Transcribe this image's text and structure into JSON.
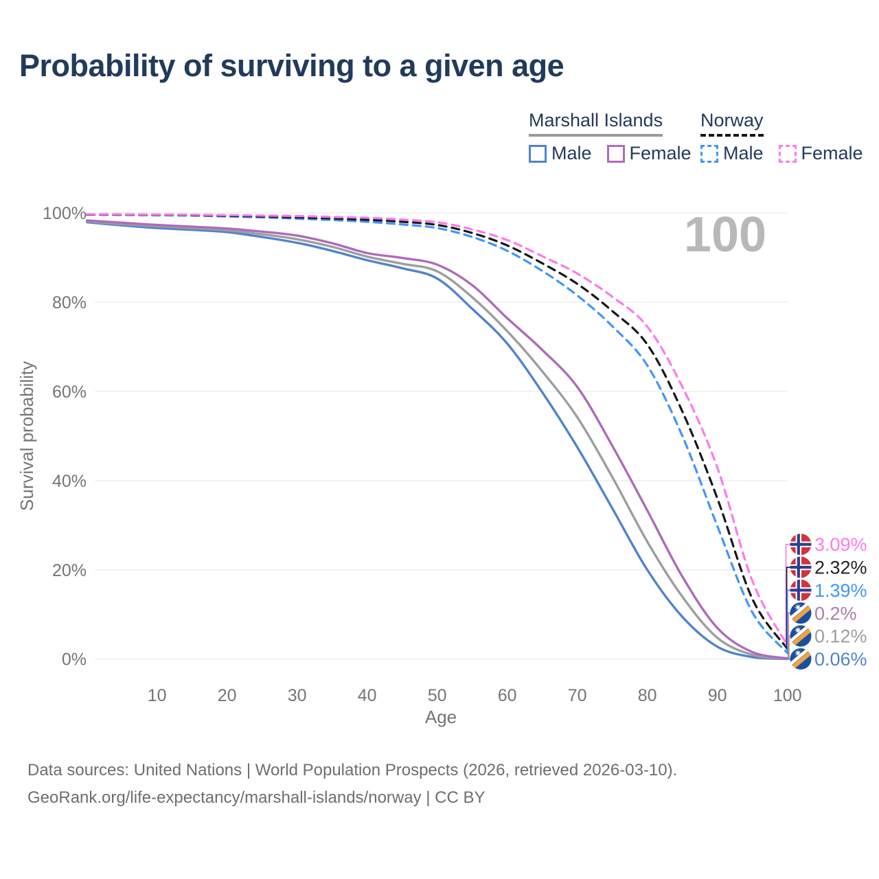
{
  "title": "Probability of surviving to a given age",
  "legend": {
    "groups": [
      {
        "name": "Marshall Islands",
        "line_style": "solid",
        "line_color": "#9b9b9b",
        "items": [
          {
            "label": "Male",
            "color": "#5083cf",
            "dashed": false
          },
          {
            "label": "Female",
            "color": "#ae6bbb",
            "dashed": false
          }
        ]
      },
      {
        "name": "Norway",
        "line_style": "dashed",
        "line_color": "#161616",
        "items": [
          {
            "label": "Male",
            "color": "#3f95ff",
            "dashed": true
          },
          {
            "label": "Female",
            "color": "#ff79ec",
            "dashed": true
          }
        ]
      }
    ]
  },
  "annotation": "100",
  "footer": {
    "line1": "Data sources: United Nations | World Population Prospects (2026, retrieved 2026-03-10).",
    "line2": "GeoRank.org/life-expectancy/marshall-islands/norway | CC BY"
  },
  "chart_data": {
    "type": "line",
    "title": "Probability of surviving to a given age",
    "xlabel": "Age",
    "ylabel": "Survival probability",
    "x_range": [
      0,
      100
    ],
    "y_range": [
      0,
      100
    ],
    "grid": true,
    "colors": {
      "grid": "#e9e9e9",
      "axis_text": "#757575",
      "annotation": "#b8b8b8"
    },
    "x_ticks": [
      {
        "value": 10,
        "label": "10"
      },
      {
        "value": 20,
        "label": "20"
      },
      {
        "value": 30,
        "label": "30"
      },
      {
        "value": 40,
        "label": "40"
      },
      {
        "value": 50,
        "label": "50"
      },
      {
        "value": 60,
        "label": "60"
      },
      {
        "value": 70,
        "label": "70"
      },
      {
        "value": 80,
        "label": "80"
      },
      {
        "value": 90,
        "label": "90"
      },
      {
        "value": 100,
        "label": "100"
      }
    ],
    "y_ticks": [
      {
        "value": 0,
        "label": "0%"
      },
      {
        "value": 20,
        "label": "20%"
      },
      {
        "value": 40,
        "label": "40%"
      },
      {
        "value": 60,
        "label": "60%"
      },
      {
        "value": 80,
        "label": "80%"
      },
      {
        "value": 100,
        "label": "100%"
      }
    ],
    "ages": [
      0,
      5,
      10,
      15,
      20,
      25,
      30,
      35,
      40,
      45,
      50,
      55,
      60,
      65,
      70,
      75,
      80,
      85,
      90,
      95,
      100
    ],
    "series": [
      {
        "id": "mi-male",
        "name": "Marshall Islands Male",
        "color": "#5083cf",
        "dashed": false,
        "values": [
          97.9,
          97.2,
          96.6,
          96.2,
          95.7,
          94.6,
          93.3,
          91.5,
          89.4,
          87.6,
          85.3,
          78.5,
          70.7,
          59.8,
          47.5,
          33.8,
          20.0,
          9.5,
          2.8,
          0.5,
          0.06
        ]
      },
      {
        "id": "mi-all",
        "name": "Marshall Islands Both sexes",
        "color": "#9e9e9e",
        "dashed": false,
        "values": [
          98.1,
          97.5,
          97.0,
          96.6,
          96.1,
          95.2,
          94.1,
          92.4,
          90.2,
          88.6,
          86.9,
          81.1,
          73.5,
          64.5,
          54.2,
          40.8,
          26.3,
          14.0,
          4.8,
          1.0,
          0.12
        ]
      },
      {
        "id": "mi-female",
        "name": "Marshall Islands Female",
        "color": "#ae6bbb",
        "dashed": false,
        "values": [
          98.3,
          97.8,
          97.3,
          96.9,
          96.5,
          95.8,
          94.9,
          93.2,
          91.0,
          89.9,
          88.4,
          83.8,
          76.4,
          69.3,
          61.0,
          47.8,
          33.3,
          18.5,
          7.0,
          1.6,
          0.2
        ]
      },
      {
        "id": "no-male",
        "name": "Norway Male",
        "color": "#3f95ff",
        "dashed": true,
        "values": [
          99.6,
          99.55,
          99.5,
          99.4,
          99.2,
          99.0,
          98.7,
          98.4,
          98.0,
          97.4,
          96.6,
          94.6,
          91.5,
          87.0,
          81.5,
          74.6,
          65.8,
          50.0,
          29.8,
          10.5,
          1.39
        ]
      },
      {
        "id": "no-all",
        "name": "Norway Both sexes",
        "color": "#161616",
        "dashed": true,
        "values": [
          99.65,
          99.6,
          99.55,
          99.5,
          99.35,
          99.2,
          99.0,
          98.75,
          98.45,
          98.0,
          97.3,
          95.5,
          92.7,
          88.7,
          84.1,
          78.0,
          70.5,
          55.5,
          36.0,
          13.5,
          2.32
        ]
      },
      {
        "id": "no-female",
        "name": "Norway Female",
        "color": "#ff79ec",
        "dashed": true,
        "values": [
          99.7,
          99.67,
          99.63,
          99.58,
          99.5,
          99.4,
          99.3,
          99.1,
          98.9,
          98.5,
          97.9,
          96.3,
          93.9,
          90.3,
          86.4,
          81.2,
          74.5,
          61.0,
          42.9,
          17.5,
          3.09
        ]
      }
    ],
    "end_labels": [
      {
        "series": "no-female",
        "flag": "norway",
        "text": "3.09%",
        "value": 3.09,
        "color": "#ff79ec"
      },
      {
        "series": "no-all",
        "flag": "norway",
        "text": "2.32%",
        "value": 2.32,
        "color": "#222222"
      },
      {
        "series": "no-male",
        "flag": "norway",
        "text": "1.39%",
        "value": 1.39,
        "color": "#3f95ff"
      },
      {
        "series": "mi-female",
        "flag": "marshall-islands",
        "text": "0.2%",
        "value": 0.2,
        "color": "#a97fae"
      },
      {
        "series": "mi-all",
        "flag": "marshall-islands",
        "text": "0.12%",
        "value": 0.12,
        "color": "#9e9e9e"
      },
      {
        "series": "mi-male",
        "flag": "marshall-islands",
        "text": "0.06%",
        "value": 0.06,
        "color": "#5083cf"
      }
    ],
    "flag_colors": {
      "norway_red": "#d2323e",
      "norway_blue": "#2a3d92",
      "mh_blue": "#1a4fa0",
      "mh_orange": "#efa23f"
    }
  }
}
